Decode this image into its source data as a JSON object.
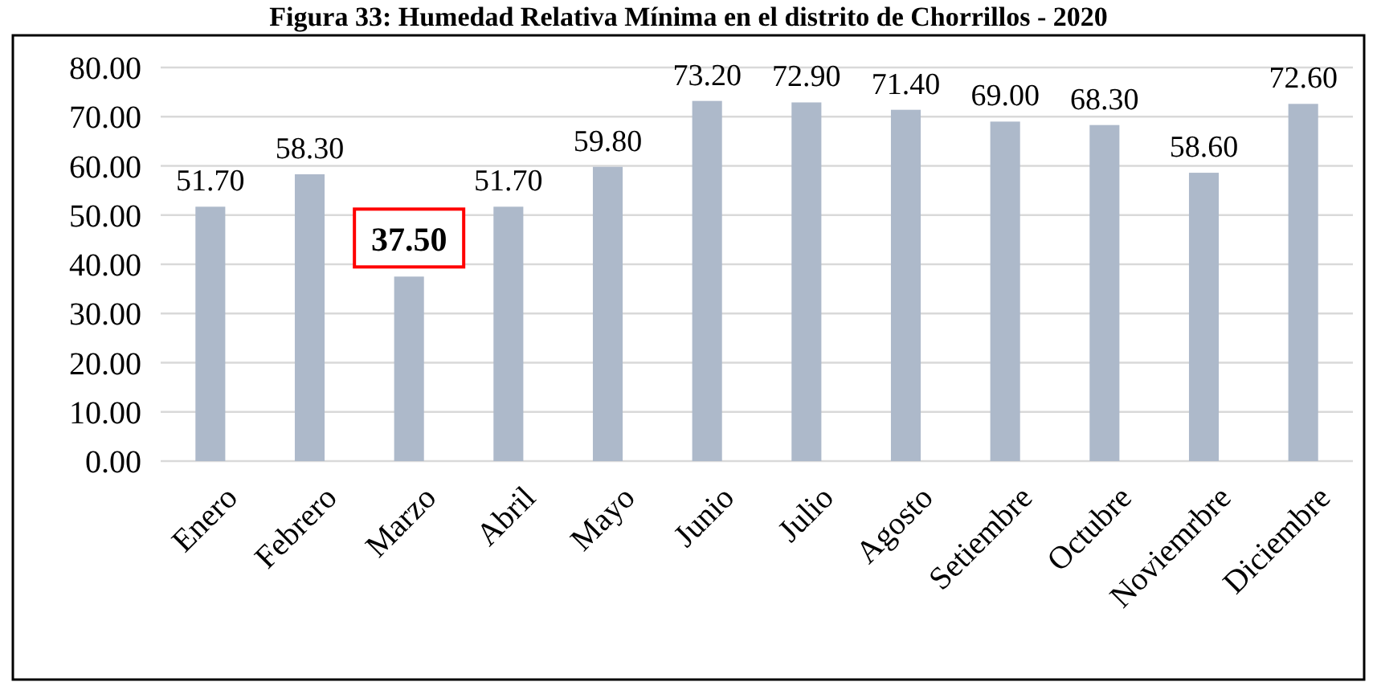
{
  "chart_data": {
    "type": "bar",
    "title": "Figura 33: Humedad Relativa Mínima en el distrito de Chorrillos - 2020",
    "categories": [
      "Enero",
      "Febrero",
      "Marzo",
      "Abril",
      "Mayo",
      "Junio",
      "Julio",
      "Agosto",
      "Setiembre",
      "Octubre",
      "Noviemrbre",
      "Diciembre"
    ],
    "values": [
      51.7,
      58.3,
      37.5,
      51.7,
      59.8,
      73.2,
      72.9,
      71.4,
      69.0,
      68.3,
      58.6,
      72.6
    ],
    "value_labels": [
      "51.70",
      "58.30",
      null,
      "51.70",
      "59.80",
      "73.20",
      "72.90",
      "71.40",
      "69.00",
      "68.30",
      "58.60",
      "72.60"
    ],
    "annotations": [
      {
        "text": "37.50",
        "x": "Marzo",
        "y": 37.5
      }
    ],
    "color": "#adb9ca",
    "ylim": [
      0,
      80
    ],
    "yticks": [
      {
        "value": 0,
        "label": "0.00"
      },
      {
        "value": 10,
        "label": "10.00"
      },
      {
        "value": 20,
        "label": "20.00"
      },
      {
        "value": 30,
        "label": "30.00"
      },
      {
        "value": 40,
        "label": "40.00"
      },
      {
        "value": 50,
        "label": "50.00"
      },
      {
        "value": 60,
        "label": "60.00"
      },
      {
        "value": 70,
        "label": "70.00"
      },
      {
        "value": 80,
        "label": "80.00"
      }
    ],
    "grid": "y"
  }
}
